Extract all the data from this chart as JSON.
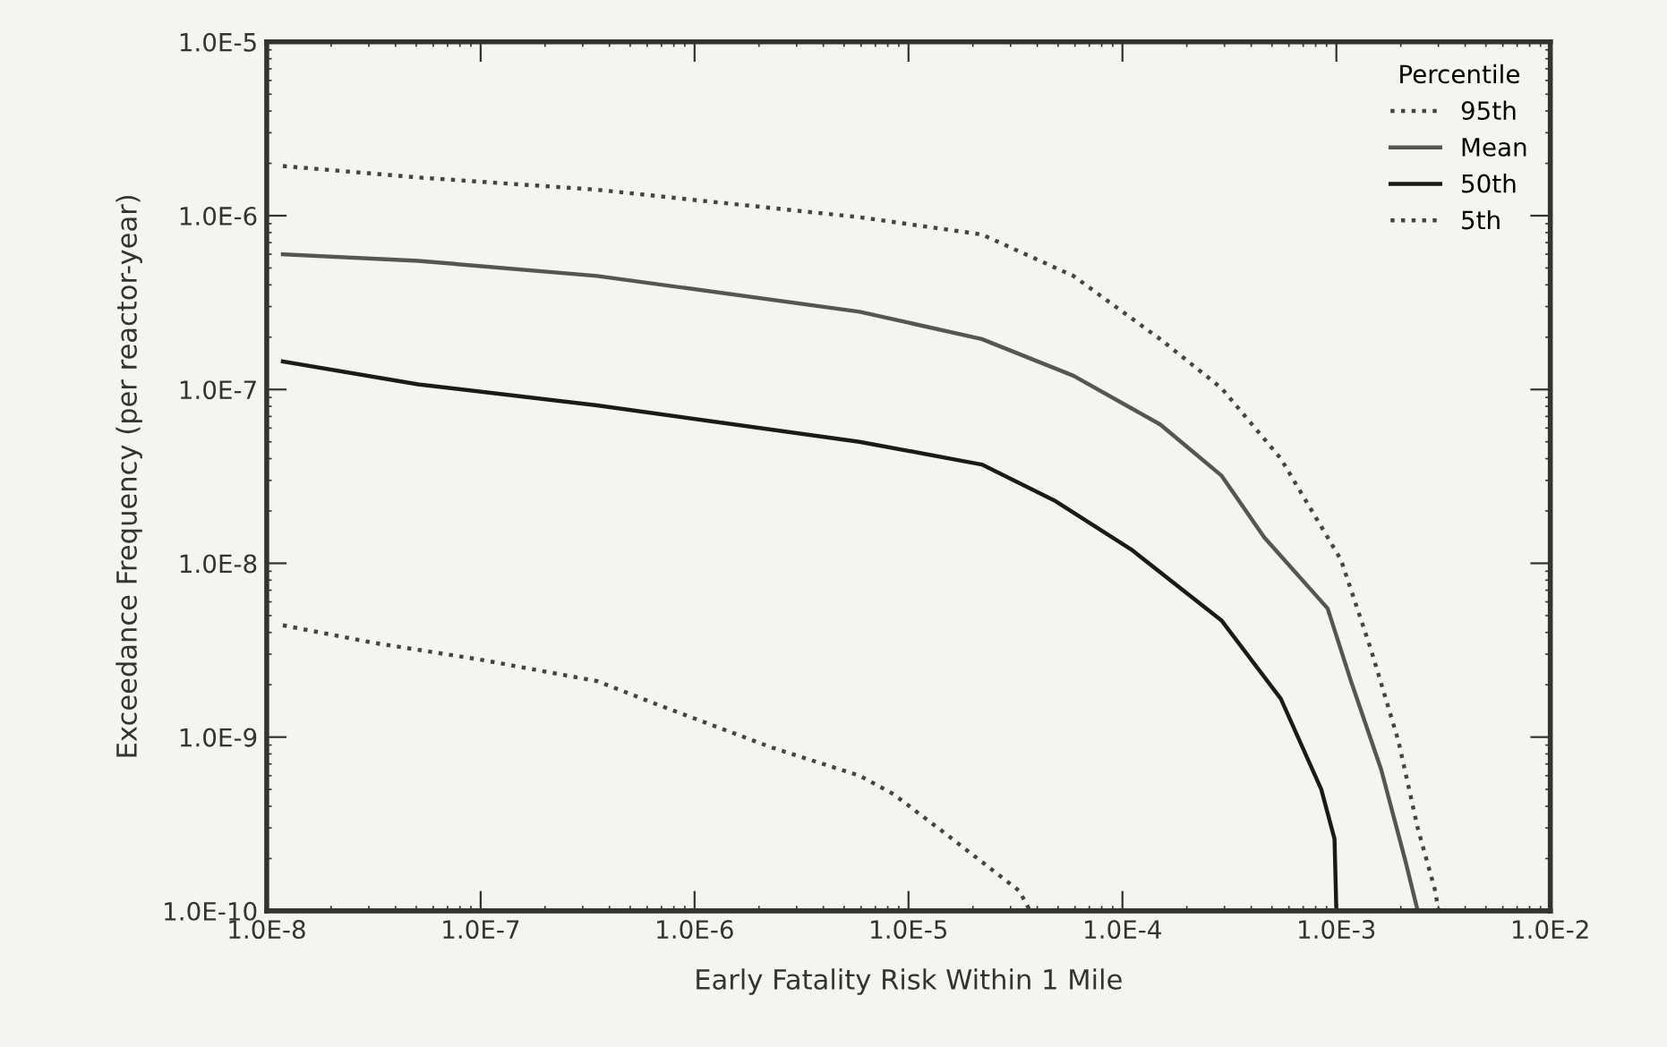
{
  "chart_data": {
    "type": "line",
    "xlabel": "Early Fatality Risk Within 1 Mile",
    "ylabel": "Exceedance Frequency (per reactor-year)",
    "legend_title": "Percentile",
    "log": "xy",
    "xlim": [
      1e-08,
      0.01
    ],
    "ylim": [
      1e-10,
      1e-05
    ],
    "xticks": [
      {
        "value": 1e-08,
        "label": "1.0E-8"
      },
      {
        "value": 1e-07,
        "label": "1.0E-7"
      },
      {
        "value": 1e-06,
        "label": "1.0E-6"
      },
      {
        "value": 1e-05,
        "label": "1.0E-5"
      },
      {
        "value": 0.0001,
        "label": "1.0E-4"
      },
      {
        "value": 0.001,
        "label": "1.0E-3"
      },
      {
        "value": 0.01,
        "label": "1.0E-2"
      }
    ],
    "yticks": [
      {
        "value": 1e-10,
        "label": "1.0E-10"
      },
      {
        "value": 1e-09,
        "label": "1.0E-9"
      },
      {
        "value": 1e-08,
        "label": "1.0E-8"
      },
      {
        "value": 1e-07,
        "label": "1.0E-7"
      },
      {
        "value": 1e-06,
        "label": "1.0E-6"
      },
      {
        "value": 1e-05,
        "label": "1.0E-5"
      }
    ],
    "grid": false,
    "legend": "top right",
    "marker": "none",
    "series": [
      {
        "name": "95th",
        "color": "#444444",
        "line_style": "dotted",
        "x": [
          1.19e-08,
          5.1e-08,
          3.5e-07,
          5.9e-06,
          2.2e-05,
          5.9e-05,
          0.00015,
          0.00029,
          0.00055,
          0.00091,
          0.00105,
          0.00145,
          0.00195,
          0.0024,
          0.0029,
          0.003
        ],
        "values": [
          1.93e-06,
          1.66e-06,
          1.41e-06,
          9.8e-07,
          7.8e-07,
          4.5e-07,
          1.95e-07,
          1.02e-07,
          4e-08,
          1.41e-08,
          1.05e-08,
          3.2e-09,
          9.5e-10,
          3e-10,
          1.3e-10,
          1e-10
        ]
      },
      {
        "name": "Mean",
        "color": "#555555",
        "line_style": "solid",
        "x": [
          1.19e-08,
          5.1e-08,
          3.5e-07,
          5.9e-06,
          2.2e-05,
          5.9e-05,
          0.00015,
          0.00029,
          0.00046,
          0.00091,
          0.00117,
          0.00162,
          0.0021,
          0.0024
        ],
        "values": [
          6e-07,
          5.5e-07,
          4.5e-07,
          2.8e-07,
          1.95e-07,
          1.2e-07,
          6.3e-08,
          3.2e-08,
          1.41e-08,
          5.5e-09,
          2.1e-09,
          6.5e-10,
          1.95e-10,
          1e-10
        ]
      },
      {
        "name": "50th",
        "color": "#1a1a1a",
        "line_style": "solid",
        "x": [
          1.19e-08,
          5.1e-08,
          3.5e-07,
          5.9e-06,
          2.2e-05,
          4.8e-05,
          0.00011,
          0.00029,
          0.00055,
          0.00085,
          0.00098,
          0.001
        ],
        "values": [
          1.45e-07,
          1.07e-07,
          8.1e-08,
          5e-08,
          3.7e-08,
          2.3e-08,
          1.2e-08,
          4.7e-09,
          1.66e-09,
          5e-10,
          2.6e-10,
          1e-10
        ]
      },
      {
        "name": "5th",
        "color": "#444444",
        "line_style": "dotted",
        "x": [
          1.19e-08,
          3.1e-08,
          9.8e-08,
          3.5e-07,
          6.6e-07,
          2.3e-06,
          5.9e-06,
          8.5e-06,
          1.6e-05,
          3.3e-05,
          3.7e-05
        ],
        "values": [
          4.4e-09,
          3.5e-09,
          2.8e-09,
          2.1e-09,
          1.55e-09,
          8.7e-10,
          6e-10,
          4.7e-10,
          2.6e-10,
          1.3e-10,
          1e-10
        ]
      }
    ]
  }
}
